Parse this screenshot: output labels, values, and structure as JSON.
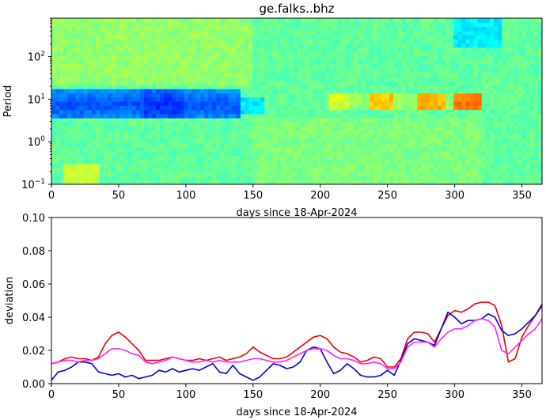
{
  "title": "ge.falks..bhz",
  "colors": {
    "line_red": "#ee0000",
    "line_blue": "#0000dd",
    "line_magenta": "#ff22ff"
  },
  "chart_data": [
    {
      "type": "heatmap",
      "title": "ge.falks..bhz",
      "xlabel": "days since 18-Apr-2024",
      "ylabel": "Period",
      "yscale": "log",
      "xlim": [
        0,
        365
      ],
      "ylim": [
        0.1,
        800
      ],
      "x_ticks": [
        "0",
        "50",
        "100",
        "150",
        "200",
        "250",
        "300",
        "350"
      ],
      "y_ticks": [
        "10^-1",
        "10^0",
        "10^1",
        "10^2"
      ],
      "colormap": "jet",
      "bands": [
        {
          "period_range": [
            4,
            20
          ],
          "x_range": [
            0,
            135
          ],
          "level": "low (blue)"
        },
        {
          "period_range": [
            6,
            14
          ],
          "x_range": [
            200,
            320
          ],
          "level": "high (yellow-orange)"
        },
        {
          "period_range": [
            150,
            600
          ],
          "x_range": [
            300,
            330
          ],
          "level": "low (light blue)"
        }
      ]
    },
    {
      "type": "line",
      "xlabel": "days since 18-Apr-2024",
      "ylabel": "deviation",
      "xlim": [
        0,
        365
      ],
      "ylim": [
        0,
        0.1
      ],
      "x_ticks": [
        "0",
        "50",
        "100",
        "150",
        "200",
        "250",
        "300",
        "350"
      ],
      "y_ticks": [
        "0.00",
        "0.02",
        "0.04",
        "0.06",
        "0.08",
        "0.10"
      ],
      "x": [
        0,
        5,
        10,
        15,
        20,
        25,
        30,
        35,
        40,
        45,
        50,
        55,
        60,
        65,
        70,
        75,
        80,
        85,
        90,
        95,
        100,
        105,
        110,
        115,
        120,
        125,
        130,
        135,
        140,
        145,
        150,
        155,
        160,
        165,
        170,
        175,
        180,
        185,
        190,
        195,
        200,
        205,
        210,
        215,
        220,
        225,
        230,
        235,
        240,
        245,
        250,
        255,
        260,
        265,
        270,
        275,
        280,
        285,
        290,
        295,
        300,
        305,
        310,
        315,
        320,
        325,
        330,
        335,
        340,
        345,
        350,
        355,
        360,
        365
      ],
      "series": [
        {
          "color": "#ee0000",
          "values": [
            0.012,
            0.013,
            0.015,
            0.016,
            0.015,
            0.015,
            0.014,
            0.016,
            0.024,
            0.029,
            0.031,
            0.028,
            0.024,
            0.02,
            0.014,
            0.014,
            0.014,
            0.015,
            0.016,
            0.015,
            0.014,
            0.014,
            0.015,
            0.014,
            0.015,
            0.016,
            0.014,
            0.015,
            0.016,
            0.018,
            0.022,
            0.019,
            0.017,
            0.015,
            0.015,
            0.016,
            0.019,
            0.022,
            0.025,
            0.028,
            0.029,
            0.027,
            0.022,
            0.019,
            0.018,
            0.016,
            0.013,
            0.014,
            0.016,
            0.015,
            0.01,
            0.01,
            0.015,
            0.027,
            0.031,
            0.031,
            0.03,
            0.025,
            0.033,
            0.041,
            0.044,
            0.043,
            0.045,
            0.048,
            0.049,
            0.049,
            0.047,
            0.035,
            0.013,
            0.015,
            0.028,
            0.035,
            0.041,
            0.048
          ]
        },
        {
          "color": "#0000dd",
          "values": [
            0.002,
            0.007,
            0.008,
            0.01,
            0.013,
            0.013,
            0.012,
            0.007,
            0.006,
            0.005,
            0.006,
            0.004,
            0.005,
            0.003,
            0.004,
            0.005,
            0.008,
            0.007,
            0.009,
            0.007,
            0.008,
            0.009,
            0.008,
            0.01,
            0.012,
            0.007,
            0.006,
            0.011,
            0.006,
            0.004,
            0.002,
            0.004,
            0.008,
            0.012,
            0.011,
            0.009,
            0.01,
            0.013,
            0.02,
            0.022,
            0.021,
            0.013,
            0.006,
            0.008,
            0.012,
            0.009,
            0.005,
            0.004,
            0.004,
            0.005,
            0.008,
            0.005,
            0.014,
            0.024,
            0.027,
            0.026,
            0.025,
            0.023,
            0.033,
            0.043,
            0.04,
            0.036,
            0.038,
            0.038,
            0.039,
            0.042,
            0.04,
            0.032,
            0.029,
            0.03,
            0.033,
            0.037,
            0.041,
            0.047
          ]
        },
        {
          "color": "#ff22ff",
          "values": [
            0.012,
            0.013,
            0.014,
            0.014,
            0.013,
            0.014,
            0.014,
            0.015,
            0.018,
            0.021,
            0.021,
            0.02,
            0.018,
            0.017,
            0.013,
            0.012,
            0.013,
            0.014,
            0.016,
            0.015,
            0.014,
            0.013,
            0.013,
            0.014,
            0.013,
            0.014,
            0.013,
            0.013,
            0.013,
            0.014,
            0.015,
            0.015,
            0.014,
            0.013,
            0.013,
            0.014,
            0.016,
            0.018,
            0.02,
            0.021,
            0.021,
            0.02,
            0.017,
            0.015,
            0.015,
            0.014,
            0.012,
            0.012,
            0.013,
            0.012,
            0.009,
            0.009,
            0.013,
            0.022,
            0.025,
            0.025,
            0.025,
            0.022,
            0.027,
            0.031,
            0.033,
            0.033,
            0.035,
            0.038,
            0.039,
            0.038,
            0.034,
            0.02,
            0.018,
            0.022,
            0.026,
            0.03,
            0.033,
            0.039
          ]
        }
      ]
    }
  ]
}
